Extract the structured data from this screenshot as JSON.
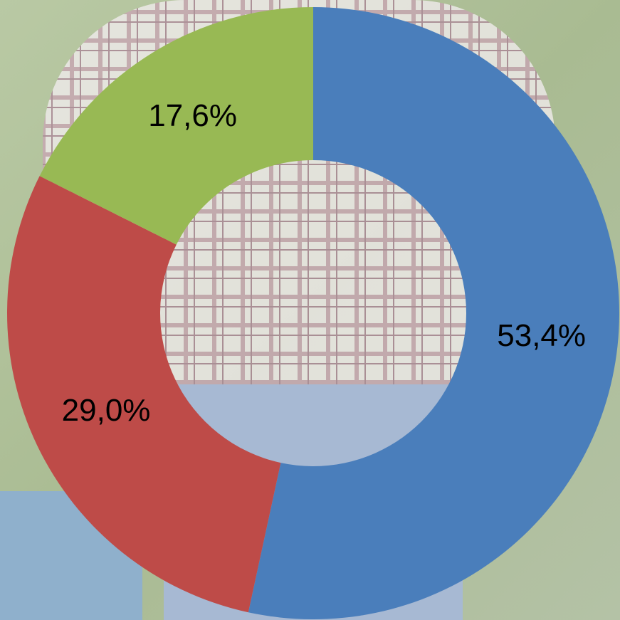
{
  "chart_data": {
    "type": "donut",
    "values": [
      53.4,
      29.0,
      17.6
    ],
    "value_labels": [
      "53,4%",
      "29,0%",
      "17,6%"
    ],
    "colors": [
      "#4a7ebb",
      "#be4b48",
      "#98b954"
    ]
  }
}
